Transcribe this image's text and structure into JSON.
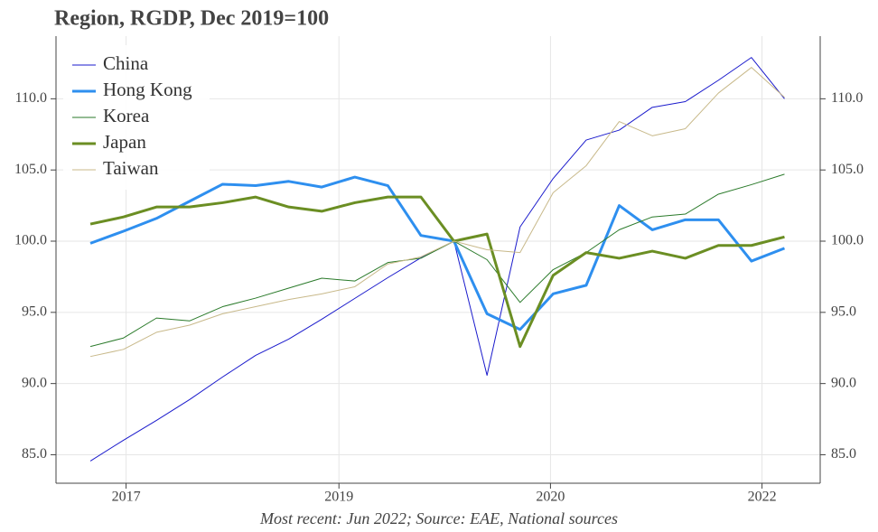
{
  "chart_data": {
    "type": "line",
    "title": "Region, RGDP, Dec 2019=100",
    "footnote": "Most recent: Jun 2022; Source: EAE, National sources",
    "x": [
      2017.25,
      2017.5,
      2017.75,
      2018.0,
      2018.25,
      2018.5,
      2018.75,
      2019.0,
      2019.25,
      2019.5,
      2019.75,
      2020.0,
      2020.25,
      2020.5,
      2020.75,
      2021.0,
      2021.25,
      2021.5,
      2021.75,
      2022.0,
      2022.25,
      2022.5
    ],
    "xlim": [
      2016.99,
      2022.77
    ],
    "xticks": [
      {
        "value": 2017.52,
        "label": "2017"
      },
      {
        "value": 2019.13,
        "label": "2019"
      },
      {
        "value": 2020.73,
        "label": "2020"
      },
      {
        "value": 2022.33,
        "label": "2022"
      }
    ],
    "ylim": [
      83,
      114.4
    ],
    "yticks": [
      {
        "value": 85,
        "label": "85.0"
      },
      {
        "value": 90,
        "label": "90.0"
      },
      {
        "value": 95,
        "label": "95.0"
      },
      {
        "value": 100,
        "label": "100.0"
      },
      {
        "value": 105,
        "label": "105.0"
      },
      {
        "value": 110,
        "label": "110.0"
      }
    ],
    "grid": true,
    "mirror_y_axis": true,
    "legend": "top-left",
    "series": [
      {
        "name": "China",
        "color": "#1a1acc",
        "line_width": 1,
        "values": [
          84.56,
          86.02,
          87.41,
          88.87,
          90.46,
          91.98,
          93.12,
          94.52,
          95.98,
          97.44,
          98.83,
          100.0,
          90.58,
          101.0,
          104.4,
          107.1,
          107.8,
          109.4,
          109.8,
          111.3,
          112.9,
          110.0
        ]
      },
      {
        "name": "Hong Kong",
        "color": "#2e8fef",
        "line_width": 3,
        "values": [
          99.85,
          100.7,
          101.6,
          102.8,
          104.0,
          103.9,
          104.2,
          103.8,
          104.5,
          103.9,
          100.4,
          100.0,
          94.9,
          93.8,
          96.3,
          96.9,
          102.5,
          100.8,
          101.5,
          101.5,
          98.6,
          99.5
        ]
      },
      {
        "name": "Korea",
        "color": "#2a7a2a",
        "line_width": 1,
        "values": [
          92.6,
          93.2,
          94.6,
          94.4,
          95.4,
          96.0,
          96.7,
          97.4,
          97.2,
          98.5,
          98.8,
          100.0,
          98.7,
          95.7,
          98.0,
          99.2,
          100.8,
          101.7,
          101.9,
          103.3,
          103.97,
          104.7
        ]
      },
      {
        "name": "Japan",
        "color": "#6b8e23",
        "line_width": 3,
        "values": [
          101.2,
          101.7,
          102.4,
          102.4,
          102.7,
          103.1,
          102.4,
          102.1,
          102.7,
          103.1,
          103.1,
          100.0,
          100.5,
          92.6,
          97.6,
          99.2,
          98.8,
          99.3,
          98.8,
          99.7,
          99.7,
          100.3
        ]
      },
      {
        "name": "Taiwan",
        "color": "#c8b98a",
        "line_width": 1,
        "values": [
          91.9,
          92.4,
          93.6,
          94.1,
          94.9,
          95.4,
          95.9,
          96.3,
          96.8,
          98.4,
          98.9,
          100.0,
          99.4,
          99.2,
          103.4,
          105.3,
          108.4,
          107.4,
          107.9,
          110.4,
          112.2,
          110.1
        ]
      }
    ]
  }
}
